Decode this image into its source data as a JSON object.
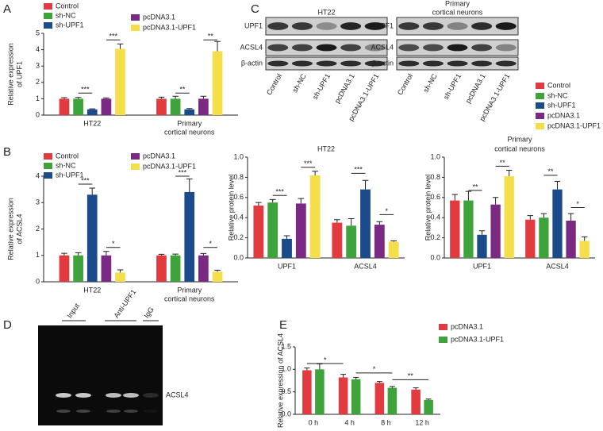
{
  "chart_data": [
    {
      "panel": "A",
      "type": "bar",
      "ylabel": [
        "Relative expression",
        "of UPF1"
      ],
      "categories": [
        "HT22",
        [
          "Primary",
          "cortical neurons"
        ]
      ],
      "series": [
        {
          "name": "Control",
          "color": "#e23b3f",
          "values": [
            1.0,
            1.0
          ],
          "errors": [
            0.07,
            0.1
          ]
        },
        {
          "name": "sh-NC",
          "color": "#3fa33c",
          "values": [
            1.0,
            1.0
          ],
          "errors": [
            0.08,
            0.15
          ]
        },
        {
          "name": "sh-UPF1",
          "color": "#1c4b8c",
          "values": [
            0.35,
            0.35
          ],
          "errors": [
            0.03,
            0.05
          ]
        },
        {
          "name": "pcDNA3.1",
          "color": "#7a2a82",
          "values": [
            1.0,
            1.0
          ],
          "errors": [
            0.05,
            0.15
          ]
        },
        {
          "name": "pcDNA3.1-UPF1",
          "color": "#f4df4a",
          "values": [
            4.05,
            3.9
          ],
          "errors": [
            0.3,
            0.6
          ]
        }
      ],
      "ylim": [
        0,
        5
      ],
      "yticks": [
        0,
        1,
        2,
        3,
        4,
        5
      ],
      "annotations": [
        "***",
        "***",
        "**",
        "**"
      ]
    },
    {
      "panel": "B",
      "type": "bar",
      "ylabel": [
        "Relative expression",
        "of ACSL4"
      ],
      "categories": [
        "HT22",
        [
          "Primary",
          "cortical neurons"
        ]
      ],
      "series": [
        {
          "name": "Control",
          "color": "#e23b3f",
          "values": [
            1.0,
            1.0
          ],
          "errors": [
            0.08,
            0.04
          ]
        },
        {
          "name": "sh-NC",
          "color": "#3fa33c",
          "values": [
            1.0,
            1.0
          ],
          "errors": [
            0.1,
            0.05
          ]
        },
        {
          "name": "sh-UPF1",
          "color": "#1c4b8c",
          "values": [
            3.3,
            3.4
          ],
          "errors": [
            0.25,
            0.5
          ]
        },
        {
          "name": "pcDNA3.1",
          "color": "#7a2a82",
          "values": [
            1.0,
            1.0
          ],
          "errors": [
            0.15,
            0.07
          ]
        },
        {
          "name": "pcDNA3.1-UPF1",
          "color": "#f4df4a",
          "values": [
            0.35,
            0.38
          ],
          "errors": [
            0.1,
            0.06
          ]
        }
      ],
      "ylim": [
        0,
        4
      ],
      "yticks": [
        0,
        1,
        2,
        3,
        4
      ],
      "annotations": [
        "***",
        "*",
        "***",
        "*"
      ]
    },
    {
      "type": "bar",
      "title": "HT22",
      "ylabel": "Relative protein level",
      "categories": [
        "UPF1",
        "ACSL4"
      ],
      "series": [
        {
          "name": "Control",
          "color": "#e23b3f",
          "values": [
            0.52,
            0.35
          ],
          "errors": [
            0.03,
            0.03
          ]
        },
        {
          "name": "sh-NC",
          "color": "#3fa33c",
          "values": [
            0.55,
            0.32
          ],
          "errors": [
            0.03,
            0.07
          ]
        },
        {
          "name": "sh-UPF1",
          "color": "#1c4b8c",
          "values": [
            0.19,
            0.68
          ],
          "errors": [
            0.03,
            0.09
          ]
        },
        {
          "name": "pcDNA3.1",
          "color": "#7a2a82",
          "values": [
            0.54,
            0.33
          ],
          "errors": [
            0.05,
            0.03
          ]
        },
        {
          "name": "pcDNA3.1-UPF1",
          "color": "#f4df4a",
          "values": [
            0.82,
            0.16
          ],
          "errors": [
            0.04,
            0.01
          ]
        }
      ],
      "ylim": [
        0,
        1.0
      ],
      "yticks": [
        {
          "value": 0,
          "label": "0.0"
        },
        0.2,
        0.4,
        0.6,
        0.8,
        {
          "value": 1.0,
          "label": "1.0"
        }
      ],
      "annotations": [
        "***",
        "***",
        "***",
        "*"
      ]
    },
    {
      "type": "bar",
      "title": [
        "Primary",
        "cortical neurons"
      ],
      "ylabel": "Relative protein level",
      "categories": [
        "UPF1",
        "ACSL4"
      ],
      "series": [
        {
          "color": "#e23b3f",
          "values": [
            0.57,
            0.38
          ],
          "errors": [
            0.06,
            0.04
          ]
        },
        {
          "color": "#3fa33c",
          "values": [
            0.57,
            0.4
          ],
          "errors": [
            0.09,
            0.04
          ]
        },
        {
          "color": "#1c4b8c",
          "values": [
            0.23,
            0.68
          ],
          "errors": [
            0.04,
            0.08
          ]
        },
        {
          "color": "#7a2a82",
          "values": [
            0.53,
            0.37
          ],
          "errors": [
            0.07,
            0.07
          ]
        },
        {
          "color": "#f4df4a",
          "values": [
            0.81,
            0.17
          ],
          "errors": [
            0.06,
            0.04
          ]
        }
      ],
      "ylim": [
        0,
        1.0
      ],
      "yticks": [
        {
          "value": 0,
          "label": "0.0"
        },
        0.2,
        0.4,
        0.6,
        0.8,
        {
          "value": 1.0,
          "label": "1.0"
        }
      ],
      "annotations": [
        "**",
        "**",
        "**",
        "*"
      ]
    },
    {
      "panel": "E",
      "type": "bar",
      "ylabel": "Relative expression of ACSL4",
      "categories": [
        "0 h",
        "4 h",
        "8 h",
        "12 h"
      ],
      "series": [
        {
          "name": "pcDNA3.1",
          "color": "#e23b3f",
          "values": [
            0.98,
            0.82,
            0.7,
            0.55
          ],
          "errors": [
            0.05,
            0.07,
            0.03,
            0.04
          ]
        },
        {
          "name": "pcDNA3.1-UPF1",
          "color": "#3fa33c",
          "values": [
            1.0,
            0.78,
            0.59,
            0.32
          ],
          "errors": [
            0.12,
            0.04,
            0.03,
            0.02
          ]
        }
      ],
      "ylim": [
        0,
        1.5
      ],
      "yticks": [
        {
          "value": 0,
          "label": "0.0"
        },
        0.5,
        {
          "value": 1.0,
          "label": "1.0"
        },
        1.5
      ],
      "annotations": [
        "*",
        "*",
        "**"
      ]
    }
  ],
  "blots": {
    "panel": "C",
    "groups": [
      {
        "title": "HT22"
      },
      {
        "title": [
          "Primary",
          "cortical neurons"
        ]
      }
    ],
    "rows": [
      "UPF1",
      "ACSL4",
      "β-actin"
    ],
    "lanes": [
      "Control",
      "sh-NC",
      "sh-UPF1",
      "pcDNA3.1",
      "pcDNA3.1-UPF1"
    ]
  },
  "gel": {
    "panel": "D",
    "lanes": [
      "Input",
      "Anti-UPF1",
      "IgG"
    ],
    "band": "ACSL4"
  }
}
